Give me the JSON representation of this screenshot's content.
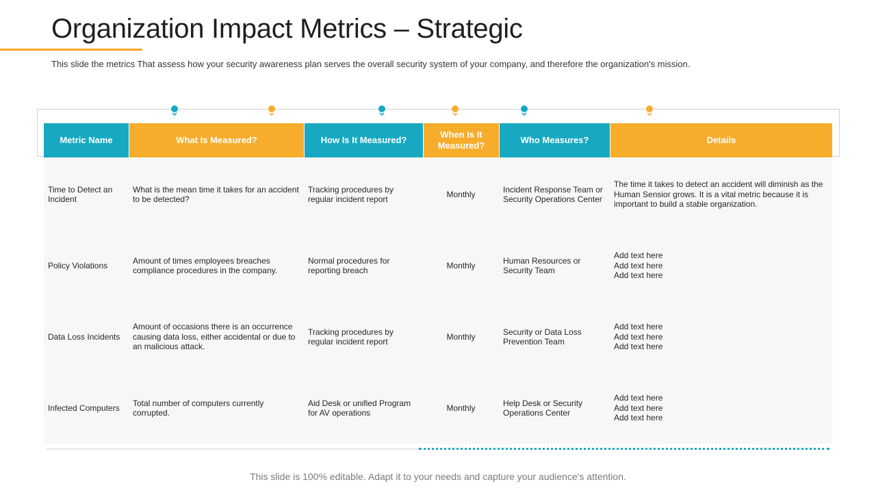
{
  "title": "Organization Impact Metrics – Strategic",
  "subtitle": "This slide the metrics That assess how your security awareness plan serves the overall security system of your company, and therefore the organization's mission.",
  "colors": {
    "teal": "#17a9c2",
    "orange": "#f7ad2c",
    "accent_underline": "#f5a623"
  },
  "table": {
    "headers": [
      "Metric Name",
      "What Is Measured?",
      "How Is It Measured?",
      "When Is It Measured?",
      "Who Measures?",
      "Details"
    ],
    "rows": [
      {
        "metric": "Time to Detect an Incident",
        "what": "What is the mean time it takes for an accident to be detected?",
        "how": "Tracking procedures by regular incident report",
        "when": "Monthly",
        "who": "Incident Response Team or Security Operations Center",
        "details": [
          "The time it takes to detect an accident will diminish as the Human Sensior grows. It is a vital metric because it is important to build a stable organization."
        ]
      },
      {
        "metric": "Policy Violations",
        "what": "Amount of times employees breaches compliance procedures in the company.",
        "how": "Normal procedures for reporting breach",
        "when": "Monthly",
        "who": "Human Resources or Security Team",
        "details": [
          "Add text here",
          "Add text here",
          "Add text here"
        ]
      },
      {
        "metric": "Data Loss Incidents",
        "what": "Amount of occasions there is an occurrence causing data loss, either accidental or due to an malicious attack.",
        "how": "Tracking procedures by regular incident report",
        "when": "Monthly",
        "who": "Security or Data Loss Prevention Team",
        "details": [
          "Add text here",
          "Add text here",
          "Add text here"
        ]
      },
      {
        "metric": "Infected Computers",
        "what": "Total number of computers currently corrupted.",
        "how": "Aid Desk or unified Program for AV operations",
        "when": "Monthly",
        "who": "Help Desk or Security Operations Center",
        "details": [
          "Add text here",
          "Add text here",
          "Add text here"
        ]
      }
    ]
  },
  "footer": "This slide is 100% editable. Adapt it to your needs and capture your audience's attention."
}
